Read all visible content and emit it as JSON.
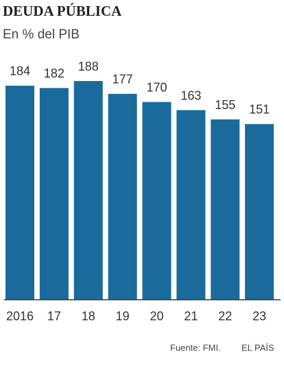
{
  "chart_data": {
    "type": "bar",
    "title": "DEUDA PÚBLICA",
    "subtitle": "En % del PIB",
    "categories": [
      "2016",
      "17",
      "18",
      "19",
      "20",
      "21",
      "22",
      "23"
    ],
    "values": [
      184,
      182,
      188,
      177,
      170,
      163,
      155,
      151
    ],
    "color": "#1b6a9c",
    "source": "Fuente: FMI.",
    "brand": "EL PAÍS"
  }
}
